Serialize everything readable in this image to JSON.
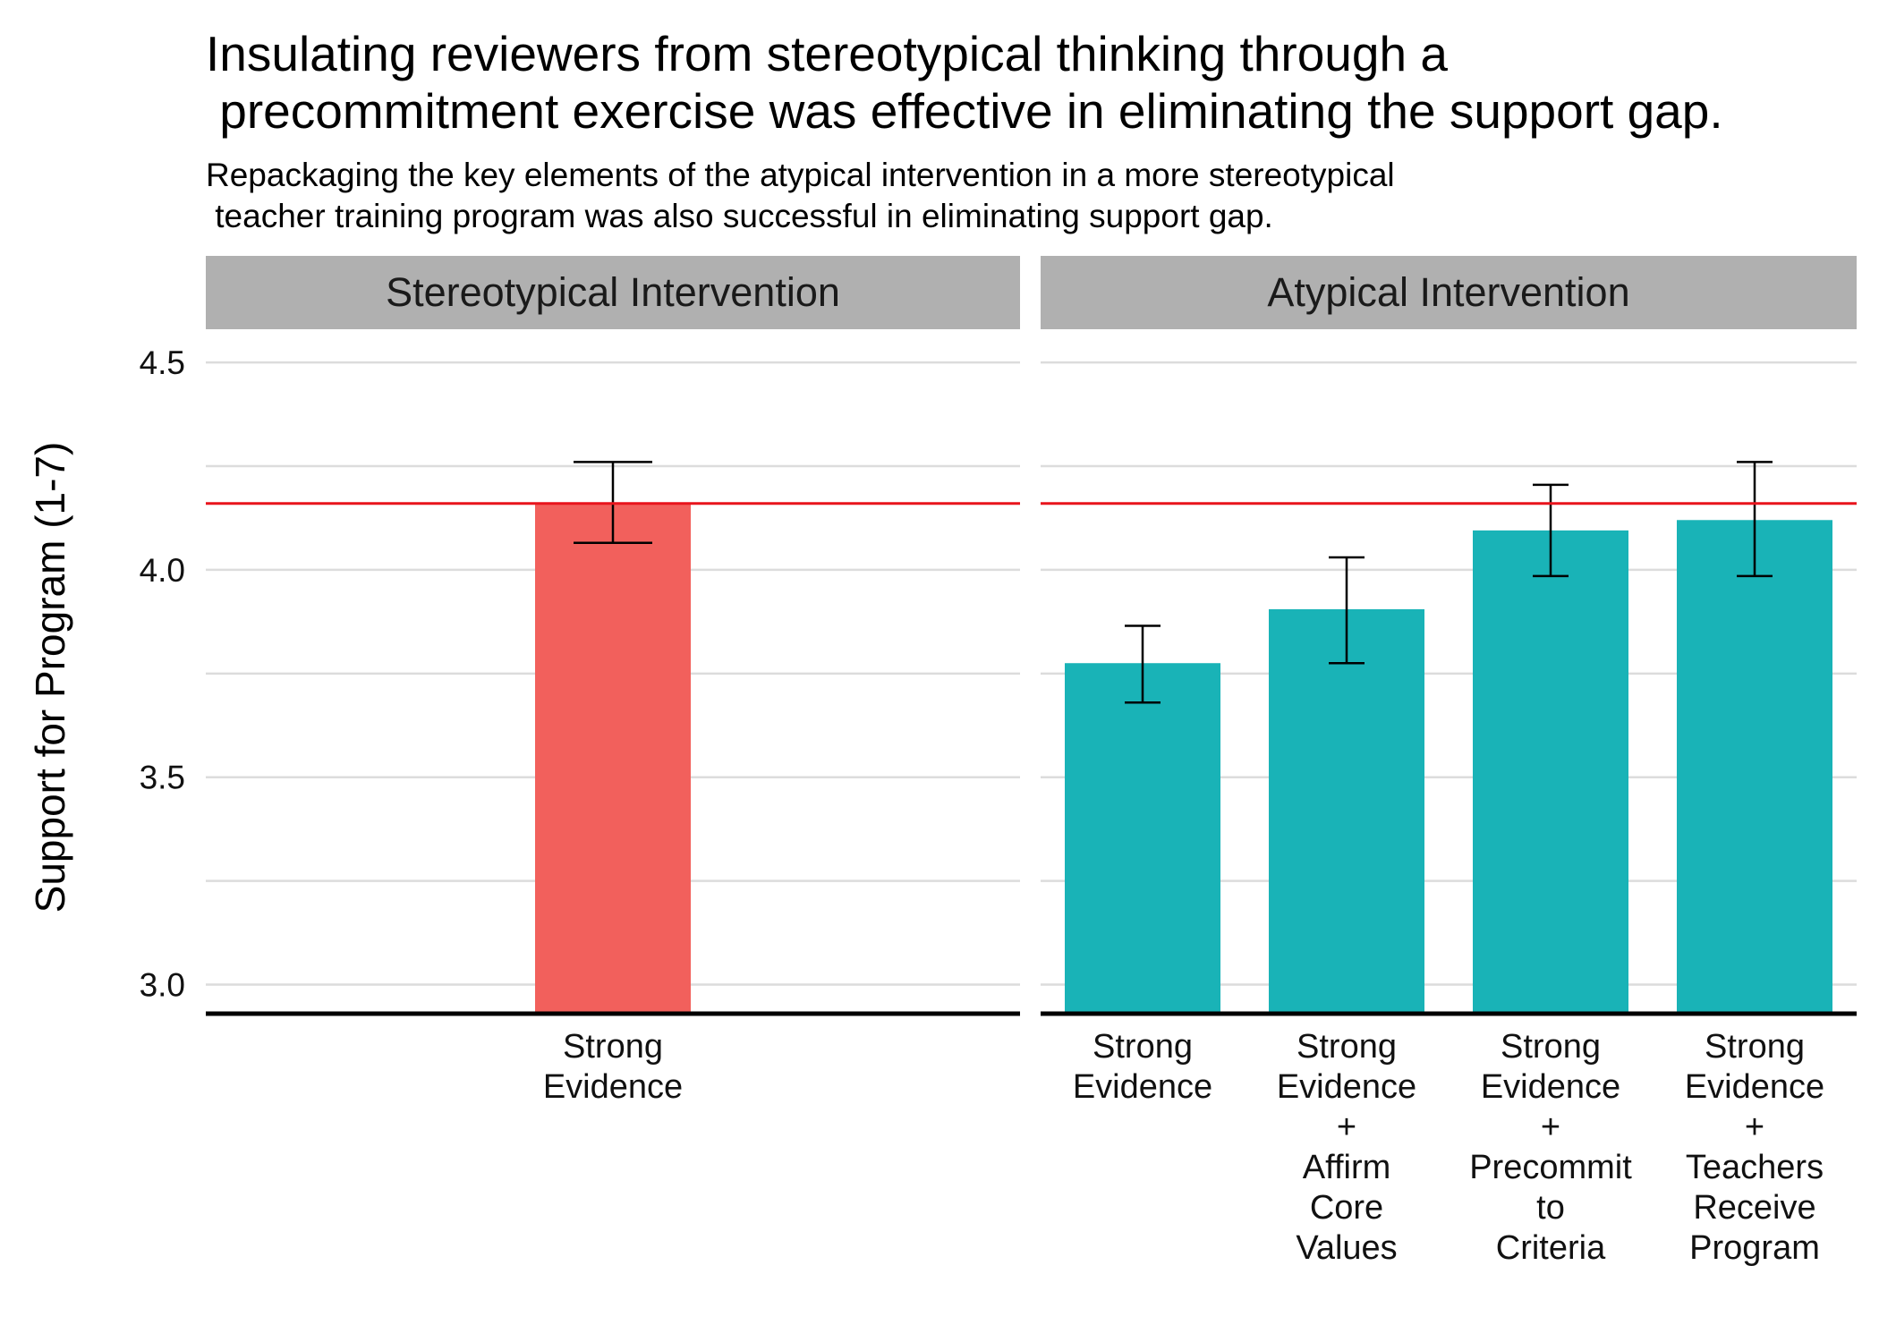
{
  "chart_data": {
    "type": "bar",
    "title": "Insulating reviewers from stereotypical thinking through a\n precommitment exercise was effective in eliminating the support gap.",
    "subtitle": "Repackaging the key elements of the atypical intervention in a more stereotypical\n teacher training program was also successful in eliminating support gap.",
    "ylabel": "Support for Program (1-7)",
    "ylim": [
      2.93,
      4.58
    ],
    "yticks": [
      "3.0",
      "3.5",
      "4.0",
      "4.5"
    ],
    "ytick_values": [
      3.0,
      3.5,
      4.0,
      4.5
    ],
    "reference_line": 4.16,
    "reference_color": "#e8141c",
    "grid": true,
    "legend": "none",
    "panels": [
      {
        "name": "Stereotypical Intervention",
        "color": "#f2605c",
        "bars": [
          {
            "label": "Strong\nEvidence",
            "value": 4.16,
            "err_low": 4.065,
            "err_high": 4.26
          }
        ]
      },
      {
        "name": "Atypical Intervention",
        "color": "#19b3b7",
        "bars": [
          {
            "label": "Strong\nEvidence",
            "value": 3.775,
            "err_low": 3.68,
            "err_high": 3.865
          },
          {
            "label": "Strong\nEvidence\n+\nAffirm\nCore\nValues",
            "value": 3.905,
            "err_low": 3.775,
            "err_high": 4.03
          },
          {
            "label": "Strong\nEvidence\n+\nPrecommit\nto\nCriteria",
            "value": 4.095,
            "err_low": 3.985,
            "err_high": 4.205
          },
          {
            "label": "Strong\nEvidence\n+\nTeachers\nReceive\nProgram",
            "value": 4.12,
            "err_low": 3.985,
            "err_high": 4.26
          }
        ]
      }
    ]
  }
}
